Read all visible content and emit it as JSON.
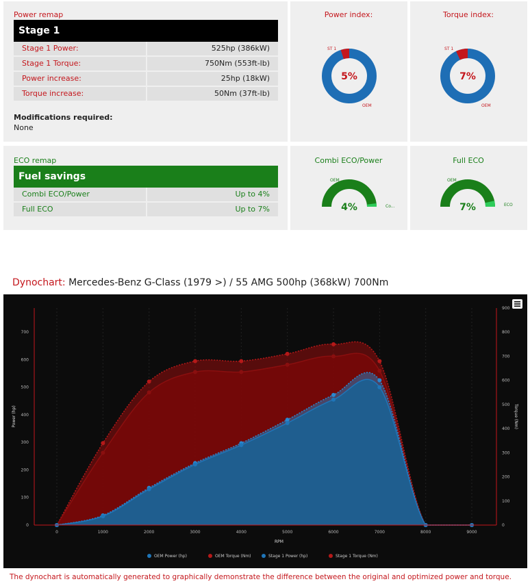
{
  "power_remap": {
    "section_title": "Power remap",
    "stage_label": "Stage 1",
    "rows": [
      {
        "label": "Stage 1 Power:",
        "value": "525hp (386kW)"
      },
      {
        "label": "Stage 1 Torque:",
        "value": "750Nm (553ft-lb)"
      },
      {
        "label": "Power increase:",
        "value": "25hp (18kW)"
      },
      {
        "label": "Torque increase:",
        "value": "50Nm (37ft-lb)"
      }
    ],
    "modifications_label": "Modifications required:",
    "modifications_value": "None"
  },
  "eco_remap": {
    "section_title": "ECO remap",
    "bar_label": "Fuel savings",
    "rows": [
      {
        "label": "Combi ECO/Power",
        "value": "Up to 4%"
      },
      {
        "label": "Full ECO",
        "value": "Up to 7%"
      }
    ]
  },
  "gauges": {
    "power_index": {
      "title": "Power index:",
      "percent": 5,
      "label": "5%",
      "slice_label": "ST 1",
      "base_label": "OEM"
    },
    "torque_index": {
      "title": "Torque index:",
      "percent": 7,
      "label": "7%",
      "slice_label": "ST 1",
      "base_label": "OEM"
    },
    "combi_eco": {
      "title": "Combi ECO/Power",
      "percent": 4,
      "label": "4%",
      "base_label": "OEM",
      "slice_label": "Co..."
    },
    "full_eco": {
      "title": "Full ECO",
      "percent": 7,
      "label": "7%",
      "base_label": "OEM",
      "slice_label": "ECO"
    }
  },
  "dynochart": {
    "heading_prefix": "Dynochart:",
    "heading_text": "Mercedes-Benz G-Class (1979 >) / 55 AMG 500hp (368kW) 700Nm"
  },
  "colors": {
    "red": "#c4161c",
    "green": "#1a7f1a",
    "blue": "#1e6eb5",
    "chart_bg": "#0c0c0c"
  },
  "chart_data": {
    "type": "area",
    "x": [
      0,
      1000,
      2000,
      3000,
      4000,
      5000,
      6000,
      7000,
      8000,
      9000
    ],
    "xlabel": "RPM",
    "ylabel_left": "Power (hp)",
    "ylabel_right": "Torque (Nm)",
    "left_ticks": [
      "0",
      "100",
      "200",
      "300",
      "400",
      "500",
      "600",
      "700"
    ],
    "right_ticks": [
      "0",
      "100",
      "200",
      "300",
      "400",
      "500",
      "600",
      "700",
      "800",
      "900"
    ],
    "x_ticks": [
      "0",
      "1000",
      "2000",
      "3000",
      "4000",
      "5000",
      "6000",
      "7000",
      "8000",
      "9000"
    ],
    "ylim_left": [
      0,
      787
    ],
    "ylim_right": [
      0,
      900
    ],
    "grid": true,
    "legend_position": "bottom",
    "series": [
      {
        "name": "OEM Torque (Nm)",
        "axis": "right",
        "color": "#8a0f0f",
        "values": [
          0,
          300,
          550,
          635,
          635,
          665,
          700,
          640,
          0,
          0
        ],
        "dots": [
          0,
          300,
          550,
          635,
          635,
          665,
          700,
          640,
          0,
          0
        ],
        "dashed": false
      },
      {
        "name": "Stage 1 Torque (Nm)",
        "axis": "right",
        "color": "#b51919",
        "values": [
          0,
          340,
          595,
          680,
          680,
          710,
          750,
          680,
          0,
          0
        ],
        "dots": [
          0,
          340,
          595,
          680,
          680,
          710,
          750,
          680,
          0,
          0
        ],
        "dashed": true
      },
      {
        "name": "OEM Power (hp)",
        "axis": "left",
        "color": "#1f75b8",
        "values": [
          0,
          32,
          130,
          220,
          290,
          370,
          455,
          500,
          0,
          0
        ],
        "dots": [
          0,
          32,
          130,
          220,
          290,
          370,
          455,
          500,
          0,
          0
        ],
        "dashed": false
      },
      {
        "name": "Stage 1 Power (hp)",
        "axis": "left",
        "color": "#2a88d0",
        "values": [
          0,
          35,
          135,
          225,
          297,
          382,
          472,
          525,
          0,
          0
        ],
        "dots": [
          0,
          35,
          135,
          225,
          297,
          382,
          472,
          525,
          0,
          0
        ],
        "dashed": true
      }
    ],
    "legend_order": [
      "OEM Power (hp)",
      "OEM Torque (Nm)",
      "Stage 1 Power (hp)",
      "Stage 1 Torque (Nm)"
    ]
  },
  "footnote": "The dynochart is automatically generated to graphically demonstrate the difference between the original and optimized power and torque."
}
